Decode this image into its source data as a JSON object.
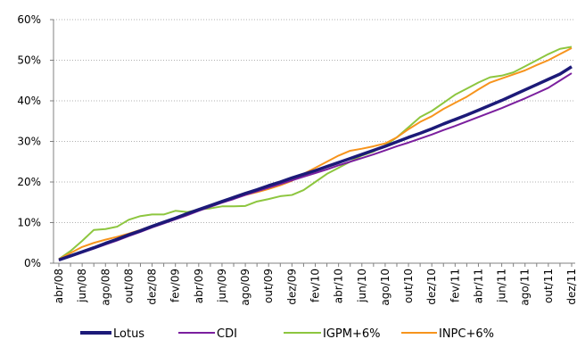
{
  "chart_data": {
    "type": "line",
    "categories": [
      "abr/08",
      null,
      "jun/08",
      null,
      "ago/08",
      null,
      "out/08",
      null,
      "dez/08",
      null,
      "fev/09",
      null,
      "abr/09",
      null,
      "jun/09",
      null,
      "ago/09",
      null,
      "out/09",
      null,
      "dez/09",
      null,
      "fev/10",
      null,
      "abr/10",
      null,
      "jun/10",
      null,
      "ago/10",
      null,
      "out/10",
      null,
      "dez/10",
      null,
      "fev/11",
      null,
      "abr/11",
      null,
      "jun/11",
      null,
      "ago/11",
      null,
      "out/11",
      null,
      "dez/11"
    ],
    "series": [
      {
        "name": "Lotus",
        "color": "#1c1a78",
        "values": [
          0.8,
          1.8,
          2.8,
          3.8,
          4.9,
          5.9,
          7.0,
          8.0,
          9.1,
          10.1,
          11.1,
          12.2,
          13.2,
          14.2,
          15.2,
          16.2,
          17.2,
          18.1,
          19.1,
          20.0,
          21.0,
          21.9,
          22.8,
          23.8,
          24.8,
          25.8,
          26.8,
          27.8,
          28.8,
          29.9,
          31.0,
          32.0,
          33.1,
          34.3,
          35.4,
          36.5,
          37.7,
          38.9,
          40.1,
          41.4,
          42.7,
          44.0,
          45.3,
          46.6,
          48.4
        ]
      },
      {
        "name": "CDI",
        "color": "#7b1f9e",
        "values": [
          0.7,
          1.6,
          2.6,
          3.6,
          4.6,
          5.6,
          6.7,
          7.7,
          8.8,
          9.8,
          10.8,
          11.8,
          12.9,
          13.9,
          14.9,
          15.8,
          16.8,
          17.7,
          18.6,
          19.5,
          20.4,
          21.3,
          22.2,
          23.1,
          24.1,
          25.0,
          25.9,
          26.8,
          27.8,
          28.8,
          29.7,
          30.7,
          31.7,
          32.8,
          33.8,
          34.9,
          36.0,
          37.1,
          38.2,
          39.4,
          40.6,
          41.9,
          43.2,
          45.0,
          46.8
        ]
      },
      {
        "name": "IGPM+6%",
        "color": "#8dc63f",
        "values": [
          1,
          3,
          5.5,
          8.2,
          8.4,
          9,
          10.7,
          11.6,
          12,
          12,
          12.9,
          12.6,
          13.2,
          13.5,
          14,
          14,
          14.1,
          15.2,
          15.8,
          16.5,
          16.8,
          18,
          20,
          22,
          23.5,
          25,
          26.5,
          27.5,
          29,
          31,
          33.5,
          36,
          37.5,
          39.5,
          41.5,
          43,
          44.5,
          45.8,
          46.2,
          47,
          48.5,
          50,
          51.5,
          52.8,
          53.3
        ]
      },
      {
        "name": "INPC+6%",
        "color": "#f7941d",
        "values": [
          1,
          2.5,
          4,
          5,
          5.8,
          6.5,
          7.3,
          8.2,
          9.2,
          10.2,
          11,
          12,
          13,
          14,
          15,
          16,
          16.8,
          17.5,
          18.3,
          19.2,
          20.3,
          22,
          23.5,
          25,
          26.5,
          27.7,
          28.2,
          28.8,
          29.5,
          31,
          33,
          34.8,
          36.2,
          38,
          39.5,
          41,
          42.8,
          44.5,
          45.5,
          46.5,
          47.5,
          48.8,
          50,
          51.5,
          53
        ]
      }
    ],
    "ylim": [
      0,
      60
    ],
    "yticks": [
      {
        "value": 0,
        "label": "0%"
      },
      {
        "value": 10,
        "label": "10%"
      },
      {
        "value": 20,
        "label": "20%"
      },
      {
        "value": 30,
        "label": "30%"
      },
      {
        "value": 40,
        "label": "40%"
      },
      {
        "value": 50,
        "label": "50%"
      },
      {
        "value": 60,
        "label": "60%"
      }
    ],
    "grid": true
  }
}
